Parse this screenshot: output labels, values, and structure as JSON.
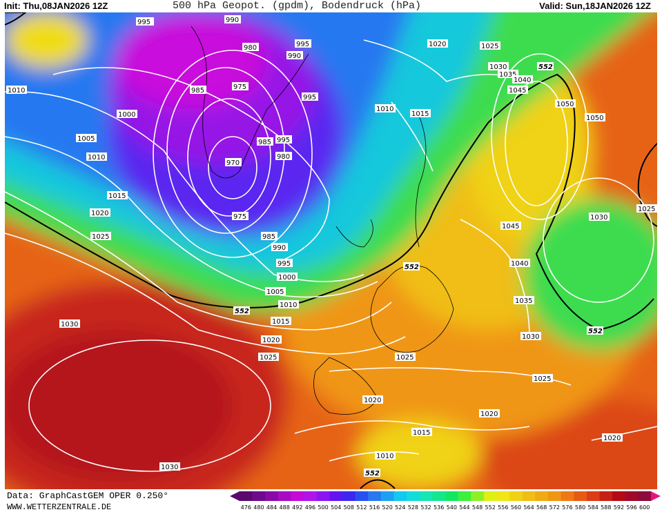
{
  "header": {
    "init": "Init: Thu,08JAN2026 12Z",
    "title": "500 hPa Geopot. (gpdm), Bodendruck (hPa)",
    "valid": "Valid: Sun,18JAN2026 12Z"
  },
  "footer": {
    "data_source": "Data: GraphCastGEM OPER 0.250°",
    "website": "WWW.WETTERZENTRALE.DE"
  },
  "legend": {
    "values": [
      "476",
      "480",
      "484",
      "488",
      "492",
      "496",
      "500",
      "504",
      "508",
      "512",
      "516",
      "520",
      "524",
      "528",
      "532",
      "536",
      "540",
      "544",
      "548",
      "552",
      "556",
      "560",
      "564",
      "568",
      "572",
      "576",
      "580",
      "584",
      "588",
      "592",
      "596",
      "600"
    ],
    "colors": [
      "#5a0a6e",
      "#700a8c",
      "#8a0aa8",
      "#a80ac4",
      "#c40ad8",
      "#b014e8",
      "#8c14f0",
      "#6414f0",
      "#3c28f0",
      "#2850f0",
      "#2878f0",
      "#1ea0f0",
      "#14c8f0",
      "#14dcdc",
      "#14e6b4",
      "#14e68c",
      "#14e664",
      "#3cf03c",
      "#8cf028",
      "#dcf014",
      "#f0e614",
      "#f0d214",
      "#f0be14",
      "#f0aa14",
      "#f09614",
      "#f07814",
      "#e65a14",
      "#dc3c14",
      "#c81e14",
      "#b40a14",
      "#a00a28",
      "#8c0a3c"
    ]
  },
  "map": {
    "contour_labels": [
      {
        "text": "995"
      },
      {
        "text": "990"
      },
      {
        "text": "980"
      },
      {
        "text": "995"
      },
      {
        "text": "990"
      },
      {
        "text": "1010"
      },
      {
        "text": "985"
      },
      {
        "text": "975"
      },
      {
        "text": "995"
      },
      {
        "text": "1000"
      },
      {
        "text": "1005"
      },
      {
        "text": "985"
      },
      {
        "text": "995"
      },
      {
        "text": "980"
      },
      {
        "text": "970"
      },
      {
        "text": "1010"
      },
      {
        "text": "1015"
      },
      {
        "text": "1020"
      },
      {
        "text": "1025"
      },
      {
        "text": "975"
      },
      {
        "text": "985"
      },
      {
        "text": "990"
      },
      {
        "text": "995"
      },
      {
        "text": "1000"
      },
      {
        "text": "1005"
      },
      {
        "text": "1010"
      },
      {
        "text": "1015"
      },
      {
        "text": "1020"
      },
      {
        "text": "1025"
      },
      {
        "text": "1010"
      },
      {
        "text": "1015"
      },
      {
        "text": "1020"
      },
      {
        "text": "1025"
      },
      {
        "text": "1030"
      },
      {
        "text": "1035"
      },
      {
        "text": "1040"
      },
      {
        "text": "1045"
      },
      {
        "text": "1050"
      },
      {
        "text": "1050"
      },
      {
        "text": "1025"
      },
      {
        "text": "1030"
      },
      {
        "text": "1045"
      },
      {
        "text": "1040"
      },
      {
        "text": "1035"
      },
      {
        "text": "1030"
      },
      {
        "text": "1030"
      },
      {
        "text": "1030"
      },
      {
        "text": "1025"
      },
      {
        "text": "1025"
      },
      {
        "text": "1020"
      },
      {
        "text": "1020"
      },
      {
        "text": "1015"
      },
      {
        "text": "1010"
      },
      {
        "text": "1020"
      }
    ],
    "geopotential_labels": [
      {
        "text": "552"
      },
      {
        "text": "552"
      },
      {
        "text": "552"
      },
      {
        "text": "552"
      },
      {
        "text": "552"
      }
    ]
  }
}
